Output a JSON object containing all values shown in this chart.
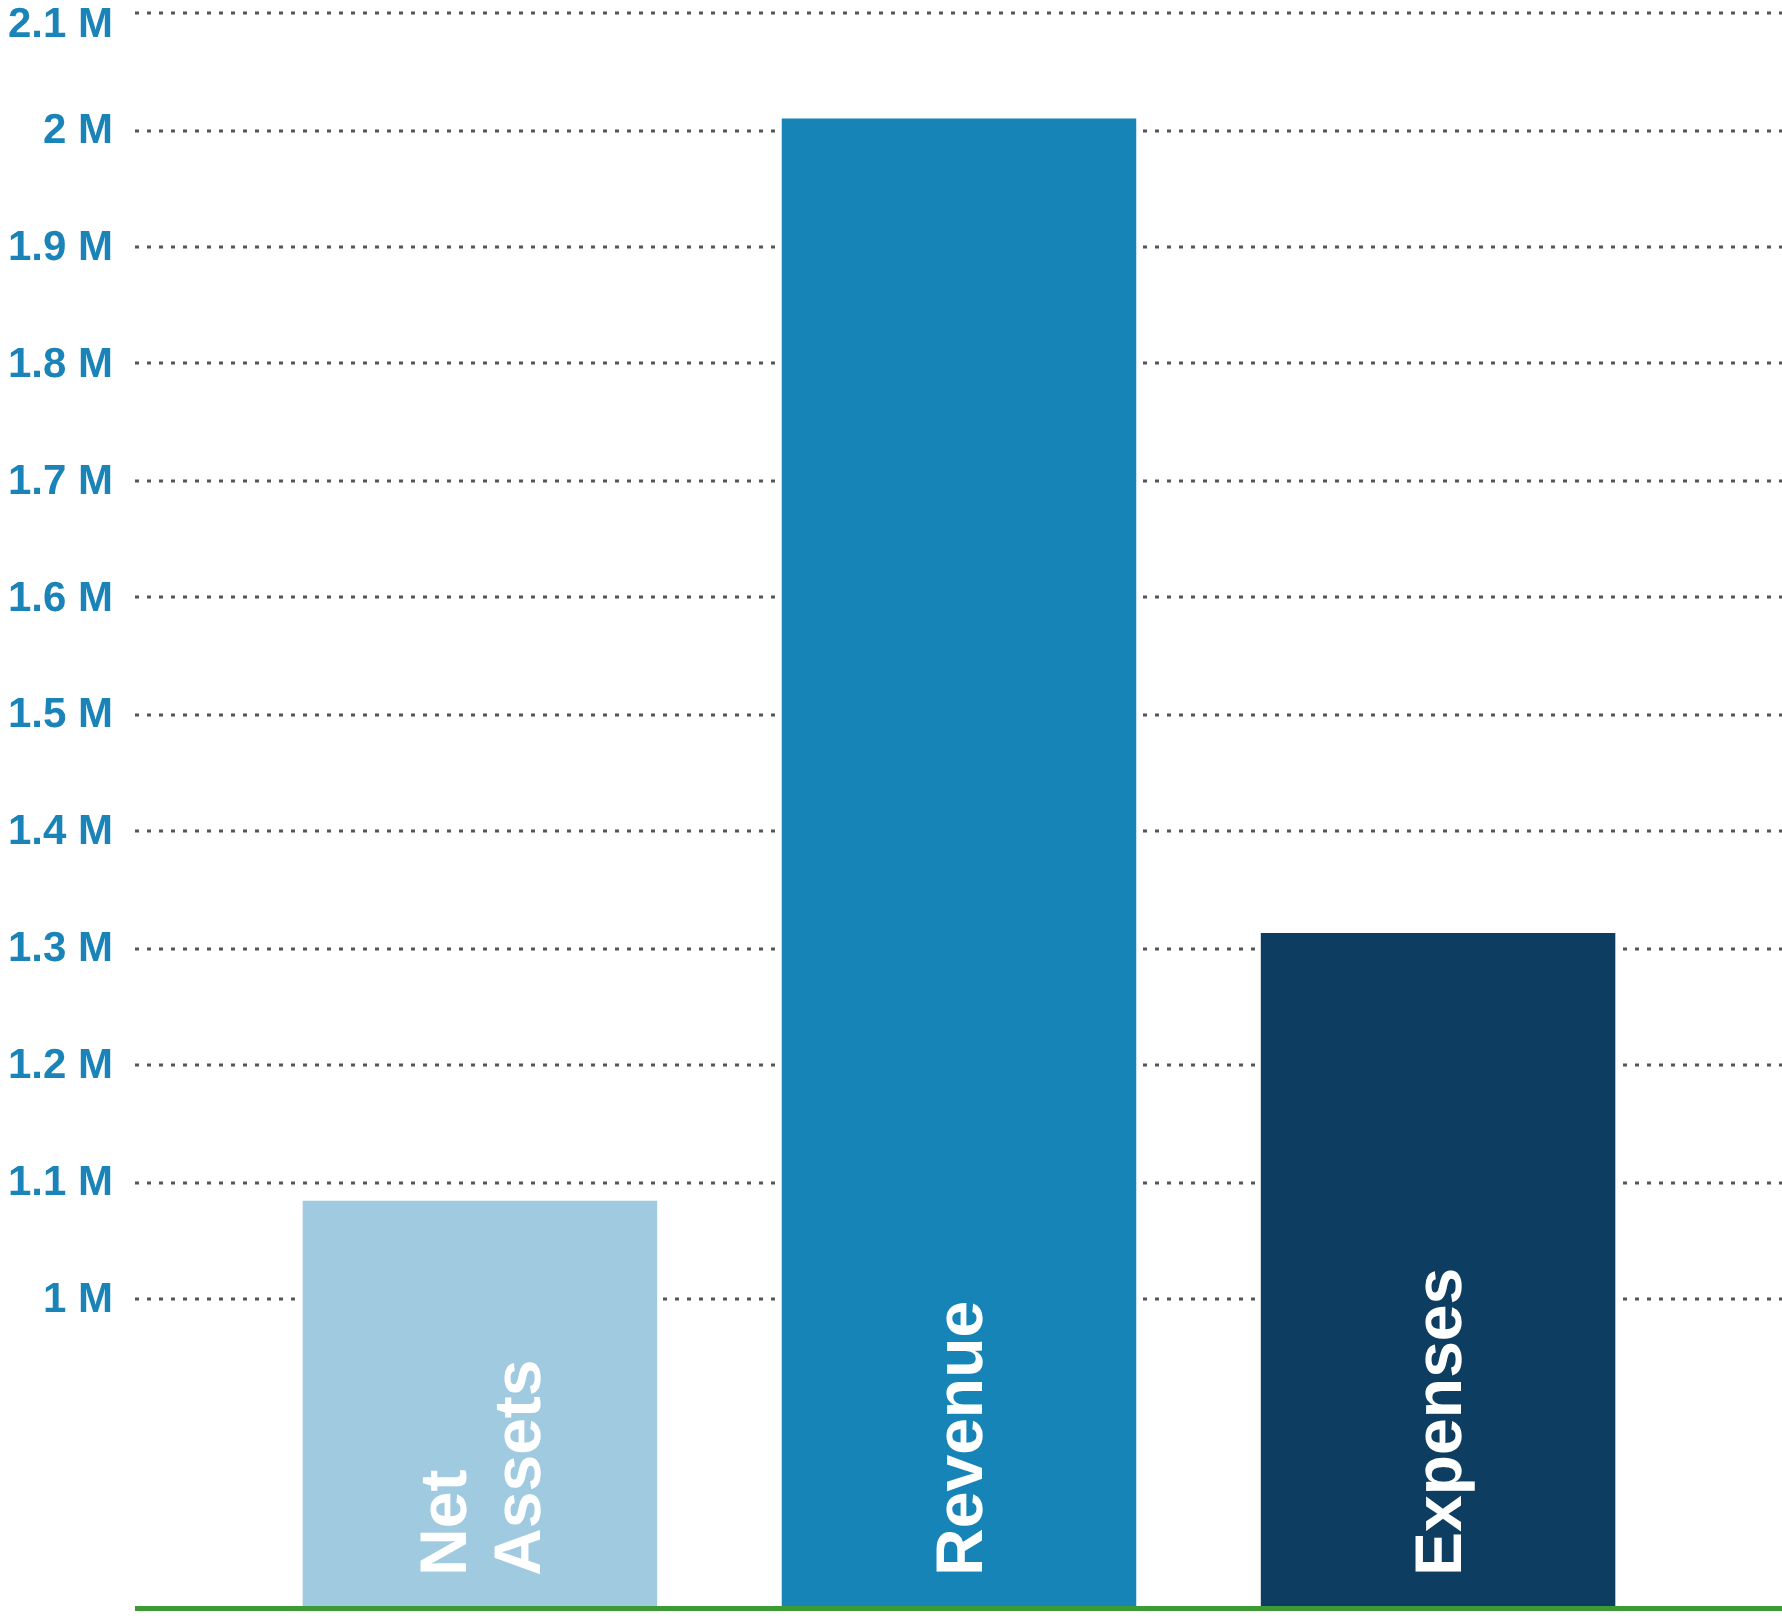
{
  "chart_data": {
    "type": "bar",
    "categories": [
      "Net Assets",
      "Revenue",
      "Expenses"
    ],
    "values": [
      1.084,
      2.01,
      1.313
    ],
    "colors": [
      "#9fcae0",
      "#1784b8",
      "#0e3d62"
    ],
    "ylim": [
      0.733,
      2.107
    ],
    "yticks": [
      {
        "value": 1.0,
        "label": "1 M"
      },
      {
        "value": 1.1,
        "label": "1.1 M"
      },
      {
        "value": 1.2,
        "label": "1.2 M"
      },
      {
        "value": 1.3,
        "label": "1.3 M"
      },
      {
        "value": 1.4,
        "label": "1.4 M"
      },
      {
        "value": 1.5,
        "label": "1.5 M"
      },
      {
        "value": 1.6,
        "label": "1.6 M"
      },
      {
        "value": 1.7,
        "label": "1.7 M"
      },
      {
        "value": 1.8,
        "label": "1.8 M"
      },
      {
        "value": 1.9,
        "label": "1.9 M"
      },
      {
        "value": 2.0,
        "label": "2 M"
      },
      {
        "value": 2.1,
        "label": "2.1 M"
      }
    ],
    "grid": "y"
  }
}
